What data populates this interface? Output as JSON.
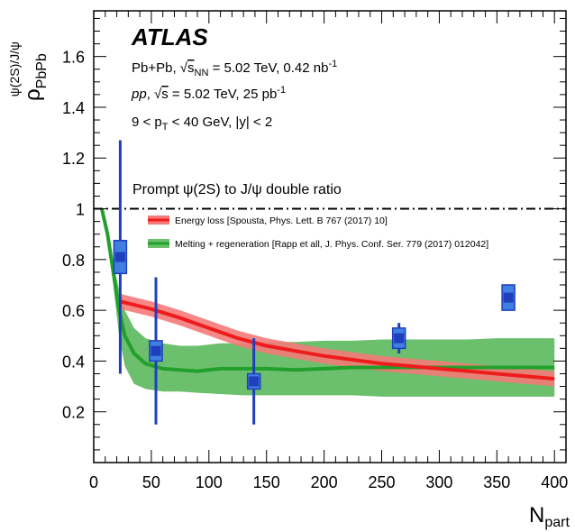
{
  "chart_data": {
    "type": "scatter",
    "experiment": "ATLAS",
    "annotations": [
      {
        "id": "collision",
        "segments": [
          "Pb+Pb, ",
          "√",
          "s",
          "NN",
          " = 5.02 TeV, 0.42 nb",
          "-1"
        ]
      },
      {
        "id": "reference",
        "segments": [
          "pp",
          ", ",
          "√",
          "s",
          " = 5.02 TeV, 25 pb",
          "-1"
        ]
      },
      {
        "id": "cuts",
        "segments": [
          "9 < p",
          "T",
          " < 40 GeV, |y| < 2"
        ]
      },
      {
        "id": "observable",
        "text": "Prompt  ψ(2S) to J/ψ double ratio"
      }
    ],
    "xlabel": {
      "main": "N",
      "sub": "part"
    },
    "ylabel": {
      "main": "ρ",
      "sub": "PbPb",
      "sup": "ψ(2S)/J/ψ"
    },
    "xlim": [
      0,
      410
    ],
    "ylim": [
      0,
      1.78
    ],
    "xticks": [
      0,
      50,
      100,
      150,
      200,
      250,
      300,
      350,
      400
    ],
    "yticks": [
      0.2,
      0.4,
      0.6,
      0.8,
      1.0,
      1.2,
      1.4,
      1.6
    ],
    "ytick_labels": [
      "0.2",
      "0.4",
      "0.6",
      "0.8",
      "1",
      "1.2",
      "1.4",
      "1.6"
    ],
    "reference_line": {
      "y": 1.0,
      "style": "dash-dot"
    },
    "legend": {
      "placement": "upper-left",
      "entries": [
        {
          "label": "Energy loss [Spousta, Phys. Lett. B 767 (2017) 10]",
          "color": "#ee1c1c",
          "band_color": "#f47a7a"
        },
        {
          "label": "Melting + regeneration [Rapp et all, J. Phys. Conf. Ser. 779 (2017) 012042]",
          "color": "#22a02b",
          "band_color": "#6cbf6c"
        }
      ]
    },
    "data_points": [
      {
        "x": 23,
        "y": 0.81,
        "err": 0.46,
        "sys": 0.065
      },
      {
        "x": 54,
        "y": 0.44,
        "err": 0.29,
        "sys": 0.04
      },
      {
        "x": 139,
        "y": 0.32,
        "err": 0.17,
        "sys": 0.03
      },
      {
        "x": 265,
        "y": 0.49,
        "err": 0.06,
        "sys": 0.04
      },
      {
        "x": 360,
        "y": 0.65,
        "err": 0.03,
        "sys": 0.05
      }
    ],
    "marker_color": "#1f3fbf",
    "sys_color": "#3f7fdf",
    "series": [
      {
        "name": "Energy loss [Spousta, Phys. Lett. B 767 (2017) 10]",
        "x": [
          23,
          50,
          75,
          100,
          125,
          150,
          175,
          200,
          225,
          250,
          275,
          300,
          325,
          350,
          375,
          400
        ],
        "y": [
          0.635,
          0.605,
          0.57,
          0.53,
          0.49,
          0.46,
          0.44,
          0.42,
          0.405,
          0.39,
          0.38,
          0.37,
          0.36,
          0.35,
          0.34,
          0.33
        ],
        "half_width": 0.03
      },
      {
        "name": "Melting + regeneration [Rapp et all, J. Phys. Conf. Ser. 779 (2017) 012042]",
        "x": [
          7,
          12,
          17,
          22,
          27,
          35,
          45,
          60,
          75,
          90,
          110,
          130,
          150,
          175,
          200,
          225,
          250,
          275,
          300,
          325,
          350,
          375,
          400
        ],
        "y": [
          1.0,
          0.9,
          0.75,
          0.6,
          0.5,
          0.43,
          0.39,
          0.37,
          0.365,
          0.36,
          0.37,
          0.37,
          0.37,
          0.365,
          0.37,
          0.375,
          0.375,
          0.375,
          0.375,
          0.375,
          0.375,
          0.375,
          0.375
        ],
        "lo": [
          1.0,
          0.88,
          0.7,
          0.5,
          0.38,
          0.31,
          0.29,
          0.28,
          0.28,
          0.275,
          0.27,
          0.265,
          0.265,
          0.265,
          0.265,
          0.265,
          0.26,
          0.26,
          0.26,
          0.26,
          0.26,
          0.26,
          0.26
        ],
        "hi": [
          1.0,
          0.92,
          0.79,
          0.68,
          0.6,
          0.53,
          0.49,
          0.47,
          0.46,
          0.46,
          0.47,
          0.47,
          0.475,
          0.475,
          0.48,
          0.48,
          0.485,
          0.485,
          0.485,
          0.485,
          0.49,
          0.49,
          0.49
        ]
      }
    ],
    "grid": false
  }
}
